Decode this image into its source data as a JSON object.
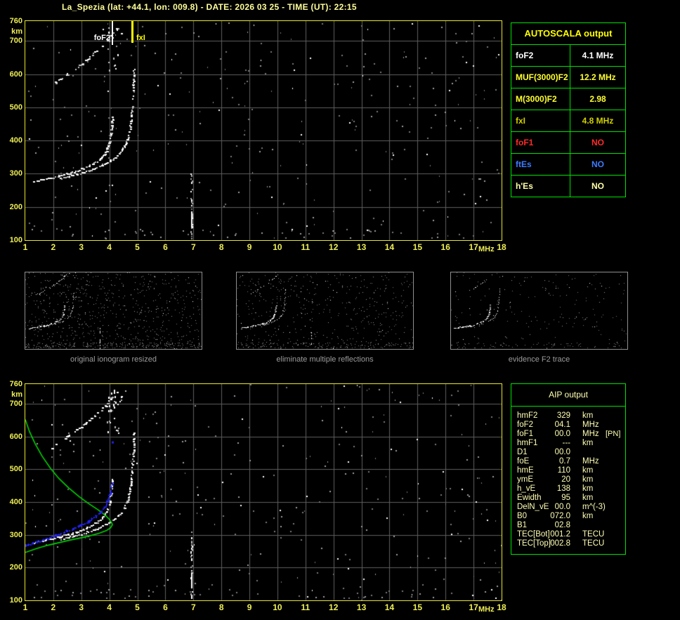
{
  "title": "La_Spezia (lat: +44.1, lon: 009.8) - DATE: 2026 03 25 - TIME (UT): 22:15",
  "colors": {
    "plot_border": "#e6e62e",
    "grid": "#5f5f5f",
    "axis_text": "#eeee55",
    "table_border": "#00e000",
    "header_yellow": "#ffff00",
    "aip_text": "#ffffb4",
    "profile_green": "#00d400",
    "restored_blue": "#2222ee",
    "marker_fof2": "#ffffff",
    "marker_fxi": "#ffff00",
    "caption_gray": "#9c9c9c"
  },
  "autoscala_table": {
    "header": "AUTOSCALA output",
    "rows": [
      {
        "label": "foF2",
        "value": "4.1 MHz",
        "color": "#ffffff"
      },
      {
        "label": "MUF(3000)F2",
        "value": "12.2 MHz",
        "color": "#ffff2e"
      },
      {
        "label": "M(3000)F2",
        "value": "2.98",
        "color": "#ffff2e"
      },
      {
        "label": "fxI",
        "value": "4.8 MHz",
        "color": "#cfcf00"
      },
      {
        "label": "foF1",
        "value": "NO",
        "color": "#ff2a2a"
      },
      {
        "label": "ftEs",
        "value": "NO",
        "color": "#3d7bff"
      },
      {
        "label": "h'Es",
        "value": "NO",
        "color": "#ffffa8"
      }
    ]
  },
  "aip_table": {
    "header": "AIP output",
    "rows": [
      {
        "label": "hmF2",
        "value": "329",
        "unit": "km",
        "note": ""
      },
      {
        "label": "foF2",
        "value": "04.1",
        "unit": "MHz",
        "note": ""
      },
      {
        "label": "foF1",
        "value": "00.0",
        "unit": "MHz",
        "note": "[PN]"
      },
      {
        "label": "hmF1",
        "value": "---",
        "unit": "km",
        "note": ""
      },
      {
        "label": "D1",
        "value": "00.0",
        "unit": "",
        "note": ""
      },
      {
        "label": "foE",
        "value": "0.7",
        "unit": "MHz",
        "note": ""
      },
      {
        "label": "hmE",
        "value": "110",
        "unit": "km",
        "note": ""
      },
      {
        "label": "ymE",
        "value": "20",
        "unit": "km",
        "note": ""
      },
      {
        "label": "h_vE",
        "value": "138",
        "unit": "km",
        "note": ""
      },
      {
        "label": "Ewidth",
        "value": "95",
        "unit": "km",
        "note": ""
      },
      {
        "label": "DelN_vE",
        "value": "00.0",
        "unit": "m^(-3)",
        "note": ""
      },
      {
        "label": "B0",
        "value": "072.0",
        "unit": "km",
        "note": ""
      },
      {
        "label": "B1",
        "value": "02.8",
        "unit": "",
        "note": ""
      },
      {
        "label": "TEC[Bot]",
        "value": "001.2",
        "unit": "TECU",
        "note": ""
      },
      {
        "label": "TEC[Top]",
        "value": "002.8",
        "unit": "TECU",
        "note": ""
      }
    ]
  },
  "thumbnails": [
    {
      "caption": "original ionogram resized"
    },
    {
      "caption": "eliminate multiple reflections"
    },
    {
      "caption": "evidence F2 trace"
    }
  ],
  "chart_data": {
    "type": "scatter",
    "description": "Vertical-incidence ionogram: virtual height (km) vs sounding frequency (MHz)",
    "x_unit": "MHz",
    "y_unit": "km",
    "x_ticks": [
      1,
      2,
      3,
      4,
      5,
      6,
      7,
      8,
      9,
      10,
      11,
      12,
      13,
      14,
      15,
      16,
      17,
      18
    ],
    "y_ticks": [
      760,
      700,
      600,
      500,
      400,
      300,
      200,
      100
    ],
    "x_range": [
      1,
      18
    ],
    "y_range": [
      100,
      760
    ],
    "markers": {
      "foF2_label": "foF2",
      "foF2_mhz": 4.1,
      "fxI_label": "fxI",
      "fxI_mhz": 4.8
    },
    "traces": {
      "o_trace": [
        [
          1.3,
          276
        ],
        [
          1.6,
          282
        ],
        [
          1.9,
          288
        ],
        [
          2.2,
          294
        ],
        [
          2.5,
          301
        ],
        [
          2.8,
          308
        ],
        [
          3.05,
          316
        ],
        [
          3.3,
          325
        ],
        [
          3.5,
          335
        ],
        [
          3.68,
          347
        ],
        [
          3.82,
          361
        ],
        [
          3.92,
          378
        ],
        [
          4.0,
          398
        ],
        [
          4.05,
          422
        ],
        [
          4.08,
          448
        ],
        [
          4.1,
          472
        ]
      ],
      "x_trace": [
        [
          2.25,
          286
        ],
        [
          2.55,
          292
        ],
        [
          2.85,
          299
        ],
        [
          3.15,
          307
        ],
        [
          3.45,
          316
        ],
        [
          3.75,
          327
        ],
        [
          4.0,
          338
        ],
        [
          4.2,
          350
        ],
        [
          4.38,
          364
        ],
        [
          4.52,
          381
        ],
        [
          4.63,
          402
        ],
        [
          4.71,
          427
        ],
        [
          4.77,
          458
        ],
        [
          4.81,
          497
        ],
        [
          4.84,
          540
        ],
        [
          4.86,
          585
        ],
        [
          4.87,
          615
        ]
      ],
      "second_hop": [
        [
          1.92,
          562
        ],
        [
          2.1,
          575
        ],
        [
          2.3,
          588
        ],
        [
          2.5,
          600
        ],
        [
          2.72,
          614
        ],
        [
          2.95,
          628
        ],
        [
          3.2,
          644
        ],
        [
          3.45,
          662
        ],
        [
          3.7,
          682
        ],
        [
          3.92,
          702
        ],
        [
          4.1,
          722
        ],
        [
          4.25,
          738
        ]
      ],
      "x_second_hop": [
        [
          4.3,
          700
        ],
        [
          4.45,
          722
        ],
        [
          4.55,
          740
        ]
      ],
      "interference_mhz": 6.93
    },
    "profile_green": {
      "topside": [
        [
          1.0,
          652
        ],
        [
          1.15,
          615
        ],
        [
          1.35,
          578
        ],
        [
          1.6,
          540
        ],
        [
          1.9,
          503
        ],
        [
          2.2,
          472
        ],
        [
          2.55,
          443
        ],
        [
          2.9,
          418
        ],
        [
          3.25,
          396
        ],
        [
          3.6,
          376
        ],
        [
          3.85,
          360
        ],
        [
          4.0,
          347
        ],
        [
          4.08,
          337
        ],
        [
          4.11,
          331
        ]
      ],
      "bottomside": [
        [
          4.11,
          331
        ],
        [
          4.05,
          322
        ],
        [
          3.9,
          313
        ],
        [
          3.65,
          305
        ],
        [
          3.35,
          298
        ],
        [
          3.0,
          291
        ],
        [
          2.6,
          284
        ],
        [
          2.2,
          276
        ],
        [
          1.8,
          268
        ],
        [
          1.4,
          258
        ],
        [
          1.0,
          246
        ]
      ]
    },
    "restored_trace_blue": [
      [
        1.0,
        267
      ],
      [
        1.25,
        274
      ],
      [
        1.5,
        281
      ],
      [
        1.8,
        290
      ],
      [
        2.1,
        299
      ],
      [
        2.4,
        309
      ],
      [
        2.7,
        319
      ],
      [
        3.0,
        330
      ],
      [
        3.25,
        341
      ],
      [
        3.5,
        355
      ],
      [
        3.7,
        370
      ],
      [
        3.85,
        387
      ],
      [
        3.95,
        405
      ],
      [
        4.02,
        425
      ],
      [
        4.06,
        443
      ],
      [
        4.09,
        458
      ]
    ],
    "stray_blue_point": [
      4.11,
      583
    ]
  }
}
